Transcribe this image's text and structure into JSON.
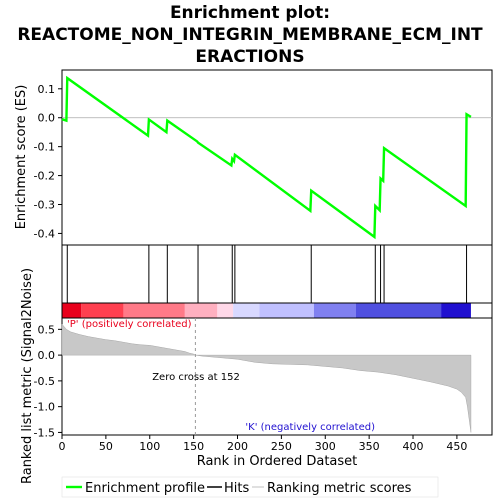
{
  "chart_data": [
    {
      "type": "line",
      "title": "Enrichment plot: REACTOME_NON_INTEGRIN_MEMBRANE_ECM_INTERACTIONS",
      "title_lines": [
        "Enrichment plot:",
        "REACTOME_NON_INTEGRIN_MEMBRANE_ECM_INT",
        "ERACTIONS"
      ],
      "ylabel": "Enrichment score (ES)",
      "xlim": [
        0,
        490
      ],
      "ylim": [
        -0.44,
        0.165
      ],
      "yticks": [
        0.1,
        0.0,
        -0.1,
        -0.2,
        -0.3,
        -0.4
      ],
      "yticklabels": [
        "0.1",
        "0.0",
        "-0.1",
        "-0.2",
        "-0.3",
        "-0.4"
      ],
      "grid": false,
      "series": [
        {
          "name": "Enrichment profile",
          "color": "#00ff00",
          "x": [
            0,
            5,
            6,
            98,
            99,
            119,
            120,
            154,
            155,
            193,
            194,
            196,
            197,
            283,
            284,
            356,
            357,
            362,
            363,
            366,
            367,
            460,
            461,
            466
          ],
          "y": [
            -0.005,
            -0.01,
            0.137,
            -0.062,
            -0.006,
            -0.05,
            -0.01,
            -0.082,
            -0.086,
            -0.165,
            -0.142,
            -0.15,
            -0.128,
            -0.322,
            -0.252,
            -0.412,
            -0.305,
            -0.32,
            -0.21,
            -0.218,
            -0.105,
            -0.305,
            0.012,
            0.003
          ]
        }
      ],
      "hits": [
        6,
        99,
        120,
        155,
        194,
        197,
        284,
        357,
        363,
        367,
        461
      ]
    },
    {
      "type": "heatmap",
      "description_colors": [
        "#e8001c",
        "#ff4050",
        "#ff7a88",
        "#ffb0c0",
        "#ffd8e8",
        "#d8d8ff",
        "#c0c0ff",
        "#8080f0",
        "#5050e0",
        "#2010d0"
      ],
      "bands": [
        0,
        22,
        70,
        140,
        177,
        195,
        225,
        287,
        335,
        432,
        466
      ],
      "labels": [
        "'P' (positively correlated)",
        "'K' (negatively correlated)"
      ]
    },
    {
      "type": "area",
      "ylabel": "Ranked list metric (Signal2Noise)",
      "xlabel": "Rank in Ordered Dataset",
      "xlim": [
        0,
        490
      ],
      "ylim": [
        -1.55,
        0.72
      ],
      "xticks": [
        0,
        50,
        100,
        150,
        200,
        250,
        300,
        350,
        400,
        450
      ],
      "xticklabels": [
        "0",
        "50",
        "100",
        "150",
        "200",
        "250",
        "300",
        "350",
        "400",
        "450"
      ],
      "yticks": [
        0.5,
        0.0,
        -0.5,
        -1.0,
        -1.5
      ],
      "yticklabels": [
        "0.5",
        "0.0",
        "-0.5",
        "-1.0",
        "-1.5"
      ],
      "zero_cross_label": "Zero cross at 152",
      "zero_cross": 152,
      "series": [
        {
          "name": "Ranking metric scores",
          "color": "#c0c0c0",
          "x": [
            0,
            5,
            10,
            20,
            30,
            40,
            50,
            60,
            70,
            80,
            90,
            100,
            110,
            120,
            130,
            140,
            145,
            150,
            152,
            160,
            180,
            200,
            220,
            240,
            260,
            280,
            300,
            320,
            340,
            360,
            380,
            400,
            420,
            440,
            450,
            455,
            460,
            462,
            464,
            466
          ],
          "y": [
            0.6,
            0.5,
            0.45,
            0.4,
            0.36,
            0.33,
            0.3,
            0.28,
            0.25,
            0.22,
            0.2,
            0.19,
            0.16,
            0.13,
            0.1,
            0.07,
            0.04,
            0.02,
            0.0,
            -0.02,
            -0.05,
            -0.08,
            -0.14,
            -0.17,
            -0.18,
            -0.19,
            -0.22,
            -0.25,
            -0.3,
            -0.33,
            -0.38,
            -0.45,
            -0.52,
            -0.6,
            -0.66,
            -0.72,
            -0.82,
            -1.0,
            -1.25,
            -1.5
          ]
        }
      ]
    }
  ],
  "legend": {
    "items": [
      {
        "label": "Enrichment profile",
        "color": "#00ff00"
      },
      {
        "label": "Hits",
        "color": "#000000"
      },
      {
        "label": "Ranking metric scores",
        "color": "#c0c0c0"
      }
    ]
  }
}
